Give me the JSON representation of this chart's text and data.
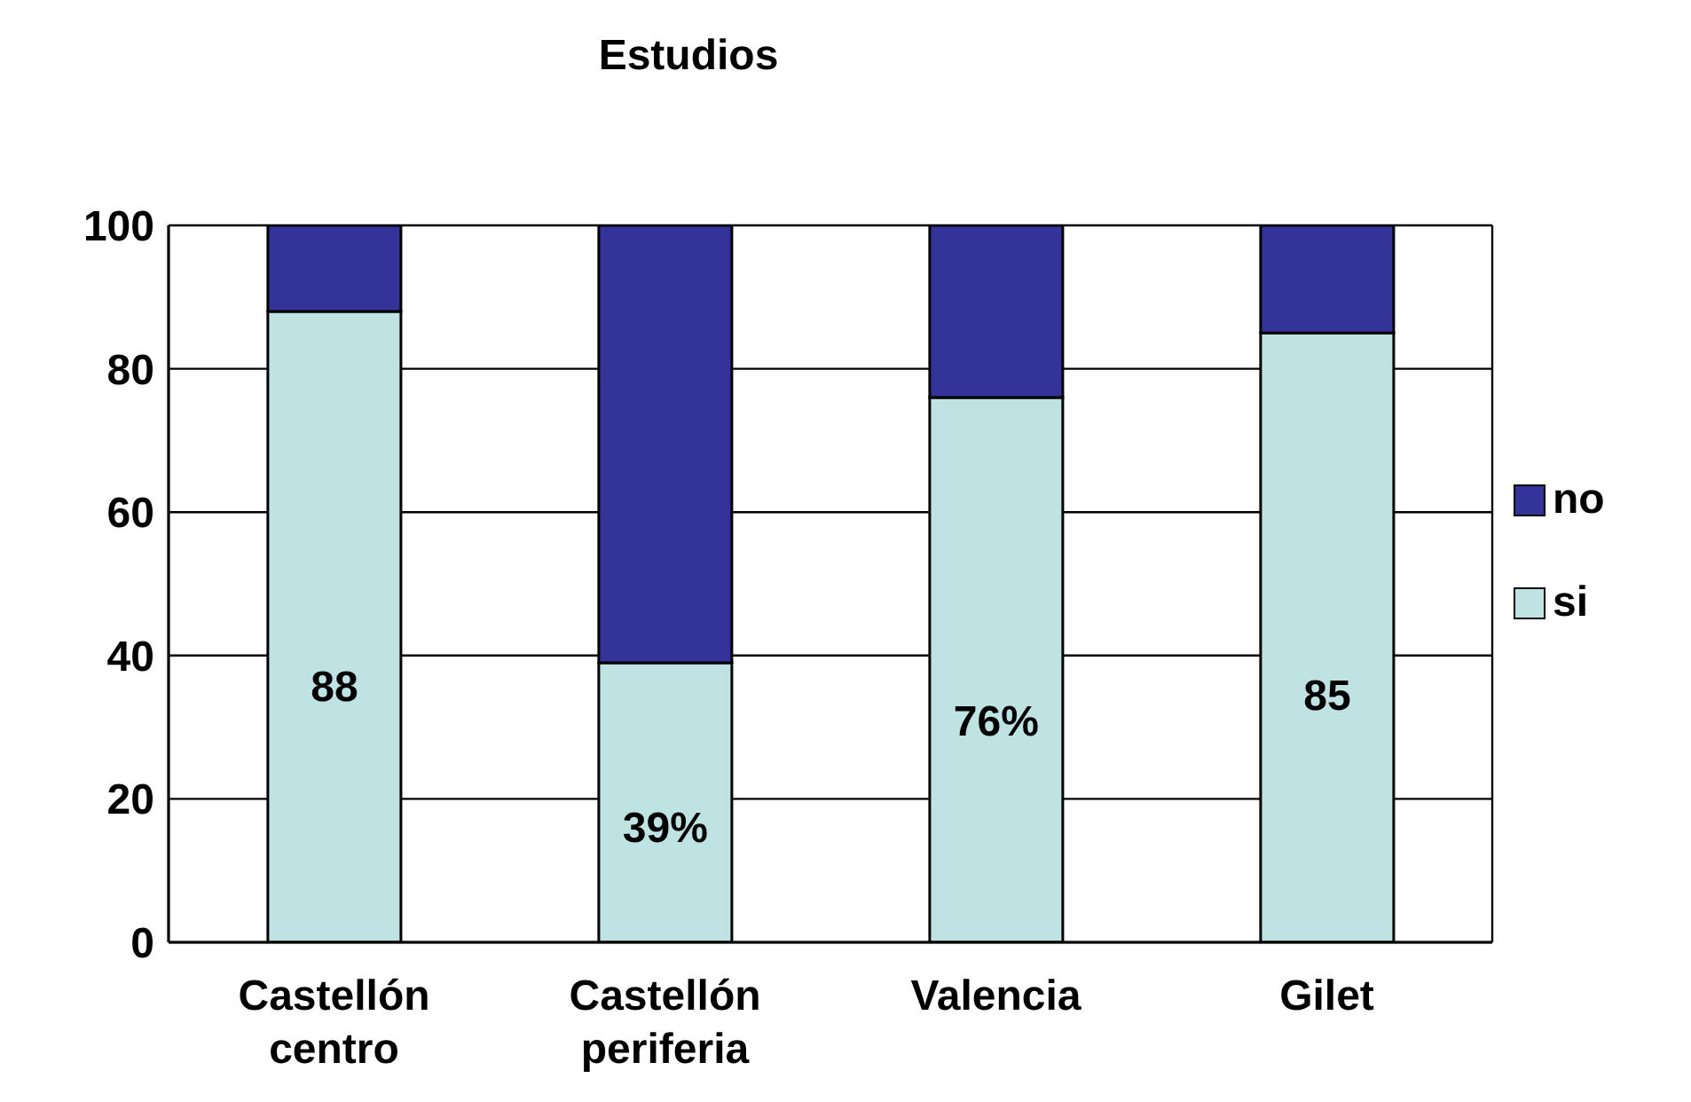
{
  "chart_data": {
    "type": "bar",
    "title": "Estudios",
    "stacked": true,
    "categories": [
      "Castellón centro",
      "Castellón periferia",
      "Valencia",
      "Gilet"
    ],
    "series": [
      {
        "name": "si",
        "color": "#bfe3e3",
        "values": [
          88,
          39,
          76,
          85
        ],
        "value_labels": [
          "88",
          "39%",
          "76%",
          "85"
        ]
      },
      {
        "name": "no",
        "color": "#333399",
        "values": [
          12,
          61,
          24,
          15
        ]
      }
    ],
    "ylim": [
      0,
      100
    ],
    "yticks": [
      0,
      20,
      40,
      60,
      80,
      100
    ],
    "grid": "y",
    "legend": "right"
  }
}
